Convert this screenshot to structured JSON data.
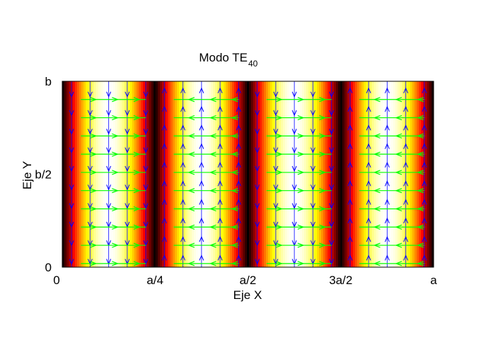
{
  "chart_data": {
    "type": "heatmap",
    "overlay": "quiver",
    "title": "Modo TE",
    "title_subscript": "40",
    "xlabel": "Eje X",
    "ylabel": "Eje Y",
    "x_tick_labels": [
      "0",
      "a/4",
      "a/2",
      "3a/2",
      "a"
    ],
    "y_tick_labels": [
      "0",
      "b/2",
      "b"
    ],
    "xlim": [
      0,
      1
    ],
    "ylim": [
      0,
      1
    ],
    "colormap": "hot",
    "field_intensity": "|sin(4*pi*x/a)|",
    "mode_m": 4,
    "mode_n": 0,
    "quiver_colors": {
      "vertical": "#0000ff",
      "horizontal": "#00ff00"
    },
    "grid": false
  }
}
